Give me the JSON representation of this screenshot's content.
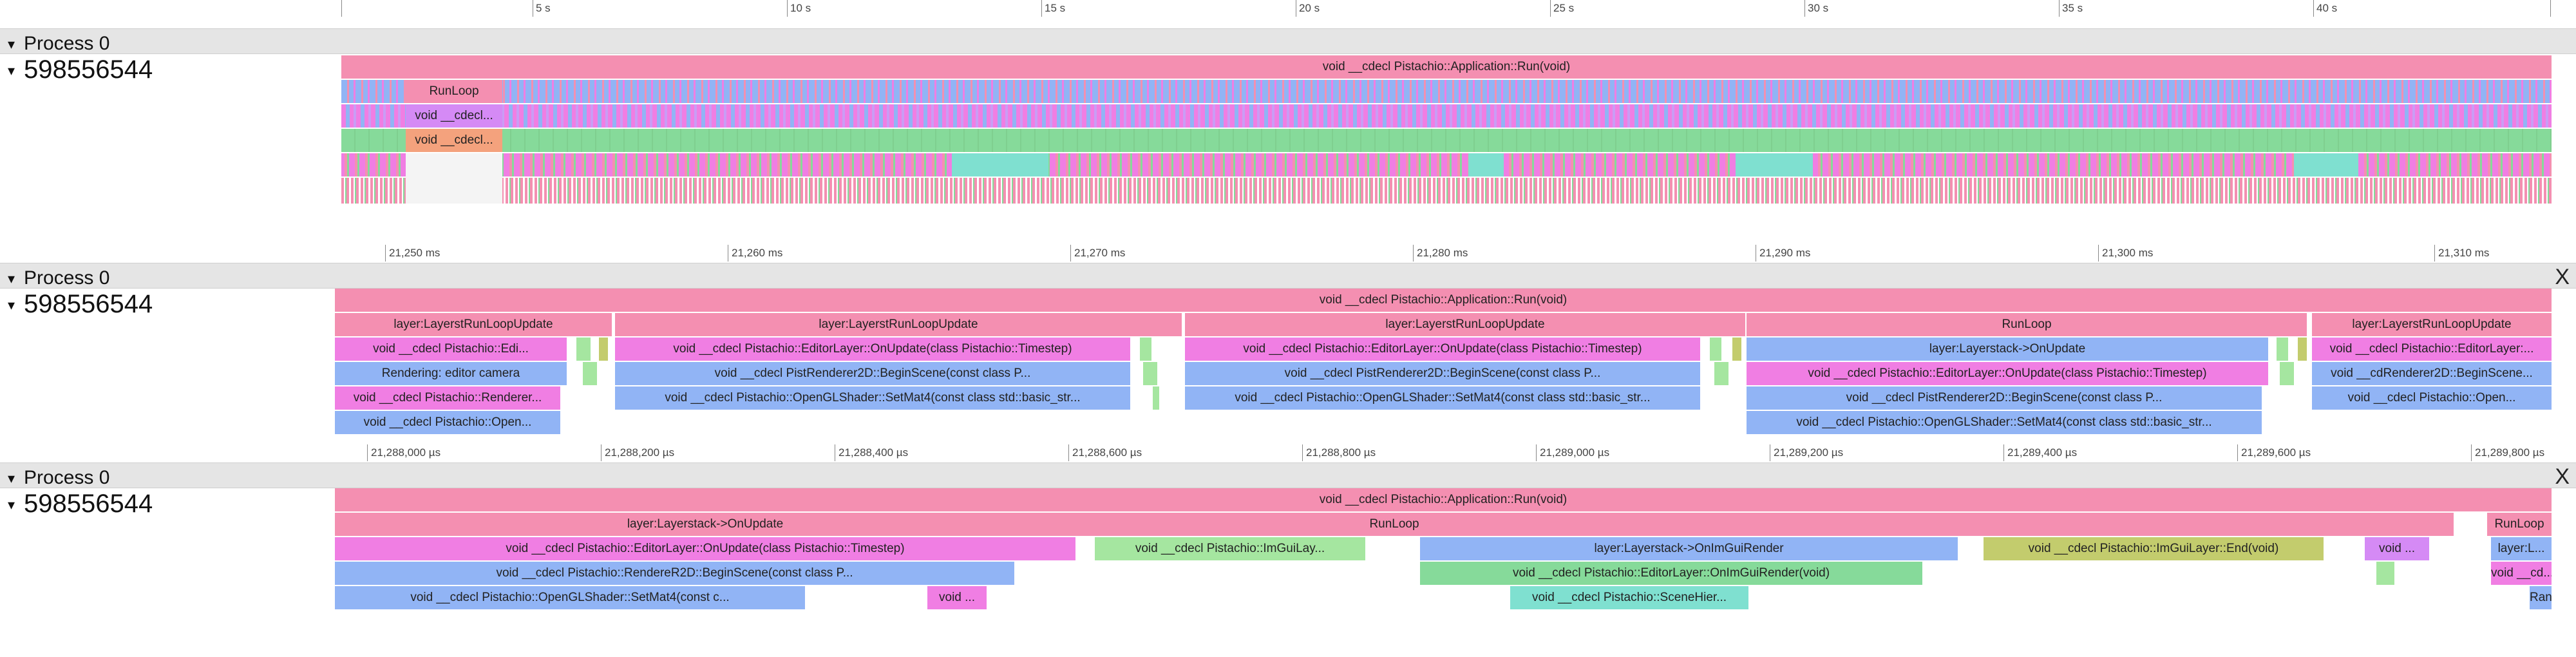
{
  "panels": [
    {
      "process": "Process 0",
      "thread": "598556544",
      "ruler": [
        "5 s",
        "10 s",
        "15 s",
        "20 s",
        "25 s",
        "30 s",
        "35 s",
        "40 s"
      ],
      "top_slice": "void __cdecl Pistachio::Application::Run(void)",
      "labels": [
        "RunLoop",
        "void __cdecl...",
        "void __cdecl..."
      ]
    },
    {
      "process": "Process 0",
      "thread": "598556544",
      "close": "X",
      "ruler": [
        "21,250 ms",
        "21,260 ms",
        "21,270 ms",
        "21,280 ms",
        "21,290 ms",
        "21,300 ms",
        "21,310 ms"
      ],
      "top_slice": "void __cdecl Pistachio::Application::Run(void)",
      "groups": [
        {
          "l1": "layer:LayerstRunLoopUpdate",
          "l2": "void __cdecl Pistachio::Edi...",
          "l3": "Rendering: editor camera",
          "l4": "void __cdecl Pistachio::Renderer...",
          "l5": "void __cdecl Pistachio::Open..."
        },
        {
          "l1": "layer:LayerstRunLoopUpdate",
          "l2": "void __cdecl Pistachio::EditorLayer::OnUpdate(class Pistachio::Timestep)",
          "l3": "void __cdecl PistRenderer2D::BeginScene(const class P...",
          "l4": "void __cdecl Pistachio::OpenGLShader::SetMat4(const class std::basic_str..."
        },
        {
          "l1": "layer:LayerstRunLoopUpdate",
          "l2": "void __cdecl Pistachio::EditorLayer::OnUpdate(class Pistachio::Timestep)",
          "l3": "void __cdecl PistRenderer2D::BeginScene(const class P...",
          "l4": "void __cdecl Pistachio::OpenGLShader::SetMat4(const class std::basic_str..."
        },
        {
          "l1": "RunLoop",
          "l2": "layer:Layerstack->OnUpdate",
          "l3": "void __cdecl Pistachio::EditorLayer::OnUpdate(class Pistachio::Timestep)",
          "l4": "void __cdecl PistRenderer2D::BeginScene(const class P...",
          "l5": "void __cdecl Pistachio::OpenGLShader::SetMat4(const class std::basic_str..."
        },
        {
          "l1": "layer:LayerstRunLoopUpdate",
          "l2": "void __cdecl Pistachio::EditorLayer:...",
          "l3": "void __cdRenderer2D::BeginScene...",
          "l4": "void __cdecl Pistachio::Open..."
        }
      ]
    },
    {
      "process": "Process 0",
      "thread": "598556544",
      "close": "X",
      "ruler": [
        "21,288,000 µs",
        "21,288,200 µs",
        "21,288,400 µs",
        "21,288,600 µs",
        "21,288,800 µs",
        "21,289,000 µs",
        "21,289,200 µs",
        "21,289,400 µs",
        "21,289,600 µs",
        "21,289,800 µs"
      ],
      "top_slice": "void __cdecl Pistachio::Application::Run(void)",
      "runloop": "RunLoop",
      "runloop2": "RunLoop",
      "onupdate": "layer:Layerstack->OnUpdate",
      "editor_onupdate": "void __cdecl Pistachio::EditorLayer::OnUpdate(class Pistachio::Timestep)",
      "renderer_begin": "void __cdecl Pistachio::RendereR2D::BeginScene(const class P...",
      "setmat4": "void __cdecl Pistachio::OpenGLShader::SetMat4(const c...",
      "void_short": "void ...",
      "imgui_begin": "void __cdecl Pistachio::ImGuiLay...",
      "onimguirender": "layer:Layerstack->OnImGuiRender",
      "editor_imgui": "void __cdecl Pistachio::EditorLayer::OnImGuiRender(void)",
      "scenehier": "void __cdecl Pistachio::SceneHier...",
      "imgui_end": "void __cdecl Pistachio::ImGuiLayer::End(void)",
      "void_short2": "void ...",
      "layer_short": "layer:L...",
      "void_cd": "void __cd...",
      "ran": "Ran"
    }
  ]
}
